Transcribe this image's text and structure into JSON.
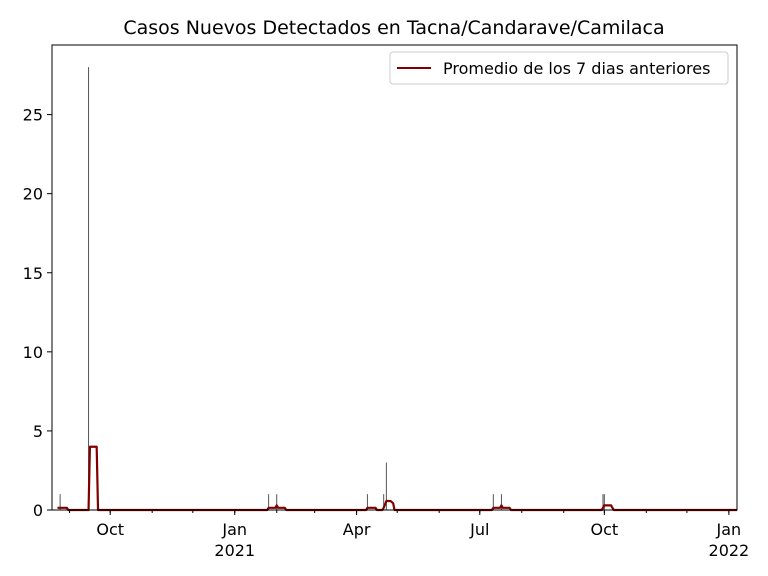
{
  "chart_data": {
    "type": "bar+line",
    "title": "Casos Nuevos Detectados en Tacna/Candarave/Camilaca",
    "xlabel": "",
    "ylabel": "",
    "x_range": [
      "2020-08-19",
      "2022-01-07"
    ],
    "ylim": [
      0,
      29.4
    ],
    "yticks": [
      0,
      5,
      10,
      15,
      20,
      25
    ],
    "xticks": [
      {
        "date": "2020-10-01",
        "label": "Oct",
        "sublabel": ""
      },
      {
        "date": "2021-01-01",
        "label": "Jan",
        "sublabel": "2021"
      },
      {
        "date": "2021-04-01",
        "label": "Apr",
        "sublabel": ""
      },
      {
        "date": "2021-07-01",
        "label": "Jul",
        "sublabel": ""
      },
      {
        "date": "2021-10-01",
        "label": "Oct",
        "sublabel": ""
      },
      {
        "date": "2022-01-01",
        "label": "Jan",
        "sublabel": "2022"
      }
    ],
    "grid": false,
    "legend": {
      "position": "top-right",
      "entries": [
        {
          "label": "Promedio de los 7 dias anteriores",
          "color": "#800000"
        }
      ]
    },
    "series": [
      {
        "kind": "bar",
        "color": "#555555",
        "points": [
          {
            "date": "2020-08-25",
            "value": 1
          },
          {
            "date": "2020-09-15",
            "value": 28
          },
          {
            "date": "2021-01-26",
            "value": 1
          },
          {
            "date": "2021-02-01",
            "value": 1
          },
          {
            "date": "2021-04-09",
            "value": 1
          },
          {
            "date": "2021-04-21",
            "value": 1
          },
          {
            "date": "2021-04-23",
            "value": 3
          },
          {
            "date": "2021-07-11",
            "value": 1
          },
          {
            "date": "2021-07-17",
            "value": 1
          },
          {
            "date": "2021-09-30",
            "value": 1
          },
          {
            "date": "2021-10-01",
            "value": 1
          },
          {
            "date": "2022-01-07",
            "value": 1
          }
        ]
      },
      {
        "kind": "line",
        "name": "Promedio de los 7 dias anteriores",
        "color": "#800000",
        "points": [
          {
            "date": "2020-08-23",
            "value": 0.14
          },
          {
            "date": "2020-08-30",
            "value": 0.14
          },
          {
            "date": "2020-08-31",
            "value": 0
          },
          {
            "date": "2020-09-15",
            "value": 0
          },
          {
            "date": "2020-09-16",
            "value": 4
          },
          {
            "date": "2020-09-21",
            "value": 4
          },
          {
            "date": "2020-09-22",
            "value": 0
          },
          {
            "date": "2021-01-25",
            "value": 0
          },
          {
            "date": "2021-01-26",
            "value": 0.14
          },
          {
            "date": "2021-01-31",
            "value": 0.14
          },
          {
            "date": "2021-02-01",
            "value": 0.29
          },
          {
            "date": "2021-02-02",
            "value": 0.14
          },
          {
            "date": "2021-02-07",
            "value": 0.14
          },
          {
            "date": "2021-02-08",
            "value": 0
          },
          {
            "date": "2021-04-08",
            "value": 0
          },
          {
            "date": "2021-04-09",
            "value": 0.14
          },
          {
            "date": "2021-04-15",
            "value": 0.14
          },
          {
            "date": "2021-04-16",
            "value": 0
          },
          {
            "date": "2021-04-20",
            "value": 0
          },
          {
            "date": "2021-04-21",
            "value": 0.14
          },
          {
            "date": "2021-04-23",
            "value": 0.57
          },
          {
            "date": "2021-04-26",
            "value": 0.57
          },
          {
            "date": "2021-04-28",
            "value": 0.43
          },
          {
            "date": "2021-04-29",
            "value": 0
          },
          {
            "date": "2021-07-10",
            "value": 0
          },
          {
            "date": "2021-07-11",
            "value": 0.14
          },
          {
            "date": "2021-07-16",
            "value": 0.14
          },
          {
            "date": "2021-07-17",
            "value": 0.29
          },
          {
            "date": "2021-07-18",
            "value": 0.14
          },
          {
            "date": "2021-07-23",
            "value": 0.14
          },
          {
            "date": "2021-07-24",
            "value": 0
          },
          {
            "date": "2021-09-29",
            "value": 0
          },
          {
            "date": "2021-09-30",
            "value": 0.14
          },
          {
            "date": "2021-10-01",
            "value": 0.29
          },
          {
            "date": "2021-10-06",
            "value": 0.29
          },
          {
            "date": "2021-10-07",
            "value": 0.14
          },
          {
            "date": "2021-10-08",
            "value": 0
          },
          {
            "date": "2022-01-07",
            "value": 0
          }
        ]
      }
    ]
  }
}
